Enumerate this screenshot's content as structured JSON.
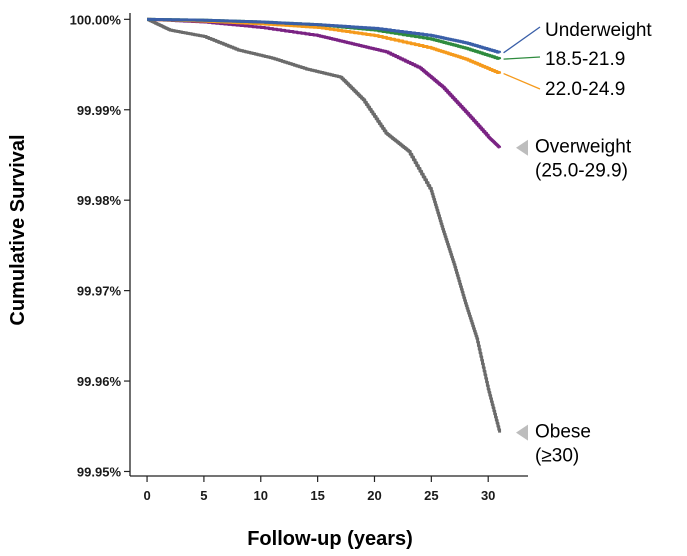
{
  "chart_data": {
    "type": "line",
    "title": "",
    "xlabel": "Follow-up (years)",
    "ylabel": "Cumulative Survival",
    "xlim": [
      -1.5,
      33.5
    ],
    "ylim": [
      99.9495,
      100.0007
    ],
    "x_ticks": [
      0,
      5,
      10,
      15,
      20,
      25,
      30
    ],
    "y_ticks": [
      99.95,
      99.96,
      99.97,
      99.98,
      99.99,
      100.0
    ],
    "y_tick_labels": [
      "99.95%",
      "99.96%",
      "99.97%",
      "99.98%",
      "99.99%",
      "100.00%"
    ],
    "grid": false,
    "series": [
      {
        "name": "Underweight",
        "color": "#3a5fa8",
        "points": [
          [
            0,
            100.0
          ],
          [
            5,
            99.9999
          ],
          [
            10,
            99.9997
          ],
          [
            15,
            99.9994
          ],
          [
            20,
            99.999
          ],
          [
            25,
            99.9982
          ],
          [
            28,
            99.9974
          ],
          [
            31,
            99.9963
          ]
        ]
      },
      {
        "name": "18.5-21.9",
        "color": "#2e8b3e",
        "points": [
          [
            0,
            100.0
          ],
          [
            5,
            99.9999
          ],
          [
            10,
            99.9997
          ],
          [
            15,
            99.9994
          ],
          [
            20,
            99.9988
          ],
          [
            25,
            99.9978
          ],
          [
            28,
            99.9968
          ],
          [
            31,
            99.9956
          ]
        ]
      },
      {
        "name": "22.0-24.9",
        "color": "#f59a1c",
        "points": [
          [
            0,
            100.0
          ],
          [
            5,
            99.9998
          ],
          [
            10,
            99.9995
          ],
          [
            15,
            99.9991
          ],
          [
            20,
            99.9982
          ],
          [
            25,
            99.9968
          ],
          [
            28,
            99.9956
          ],
          [
            31,
            99.994
          ]
        ]
      },
      {
        "name": "Overweight (25.0-29.9)",
        "color": "#7a2383",
        "points": [
          [
            0,
            100.0
          ],
          [
            5,
            99.9997
          ],
          [
            10,
            99.9991
          ],
          [
            15,
            99.9982
          ],
          [
            18,
            99.9973
          ],
          [
            21,
            99.9964
          ],
          [
            24,
            99.9946
          ],
          [
            26,
            99.9925
          ],
          [
            28,
            99.9898
          ],
          [
            30,
            99.987
          ],
          [
            31,
            99.9858
          ]
        ]
      },
      {
        "name": "Obese (≥30)",
        "color": "#6b6b6b",
        "points": [
          [
            0,
            100.0
          ],
          [
            2,
            99.9988
          ],
          [
            5,
            99.9981
          ],
          [
            8,
            99.9966
          ],
          [
            11,
            99.9957
          ],
          [
            14,
            99.9945
          ],
          [
            17,
            99.9936
          ],
          [
            19,
            99.9911
          ],
          [
            21,
            99.9874
          ],
          [
            23,
            99.9854
          ],
          [
            25,
            99.981
          ],
          [
            26,
            99.9768
          ],
          [
            27,
            99.9729
          ],
          [
            28,
            99.9686
          ],
          [
            29,
            99.9647
          ],
          [
            30,
            99.9591
          ],
          [
            31,
            99.9543
          ]
        ]
      }
    ],
    "annotations": [
      {
        "series": "Underweight",
        "text": "Underweight",
        "marker": "line"
      },
      {
        "series": "18.5-21.9",
        "text": "18.5-21.9",
        "marker": "line"
      },
      {
        "series": "22.0-24.9",
        "text": "22.0-24.9",
        "marker": "line"
      },
      {
        "series": "Overweight (25.0-29.9)",
        "lines": [
          "Overweight",
          "(25.0-29.9)"
        ],
        "marker": "triangle"
      },
      {
        "series": "Obese (≥30)",
        "lines": [
          "Obese",
          "(≥30)"
        ],
        "marker": "triangle"
      }
    ]
  }
}
